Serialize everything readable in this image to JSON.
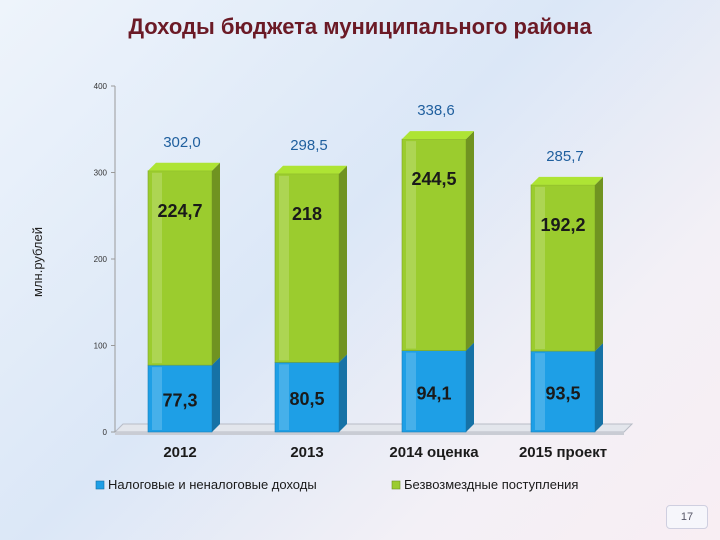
{
  "title": "Доходы бюджета муниципального района",
  "page_number": "17",
  "colors": {
    "blue": "#1e9fe6",
    "green": "#9bcc2e",
    "title": "#6b1a26",
    "total_label": "#1f5f9e"
  },
  "chart_data": {
    "type": "bar",
    "stacked": true,
    "categories": [
      "2012",
      "2013",
      "2014 оценка",
      "2015 проект"
    ],
    "series": [
      {
        "name": "Налоговые и неналоговые доходы",
        "values": [
          77.3,
          80.5,
          94.1,
          93.5
        ],
        "labels": [
          "77,3",
          "80,5",
          "94,1",
          "93,5"
        ],
        "color": "#1e9fe6"
      },
      {
        "name": "Безвозмездные поступления",
        "values": [
          224.7,
          218,
          244.5,
          192.2
        ],
        "labels": [
          "224,7",
          "218",
          "244,5",
          "192,2"
        ],
        "color": "#9bcc2e"
      }
    ],
    "totals": [
      302.0,
      298.5,
      338.6,
      285.7
    ],
    "total_labels": [
      "302,0",
      "298,5",
      "338,6",
      "285,7"
    ],
    "ylabel": "млн.рублей",
    "ylim": [
      0,
      400
    ],
    "yticks": [
      "0",
      "100",
      "200",
      "300",
      "400"
    ],
    "legend_position": "bottom",
    "grid": false
  }
}
